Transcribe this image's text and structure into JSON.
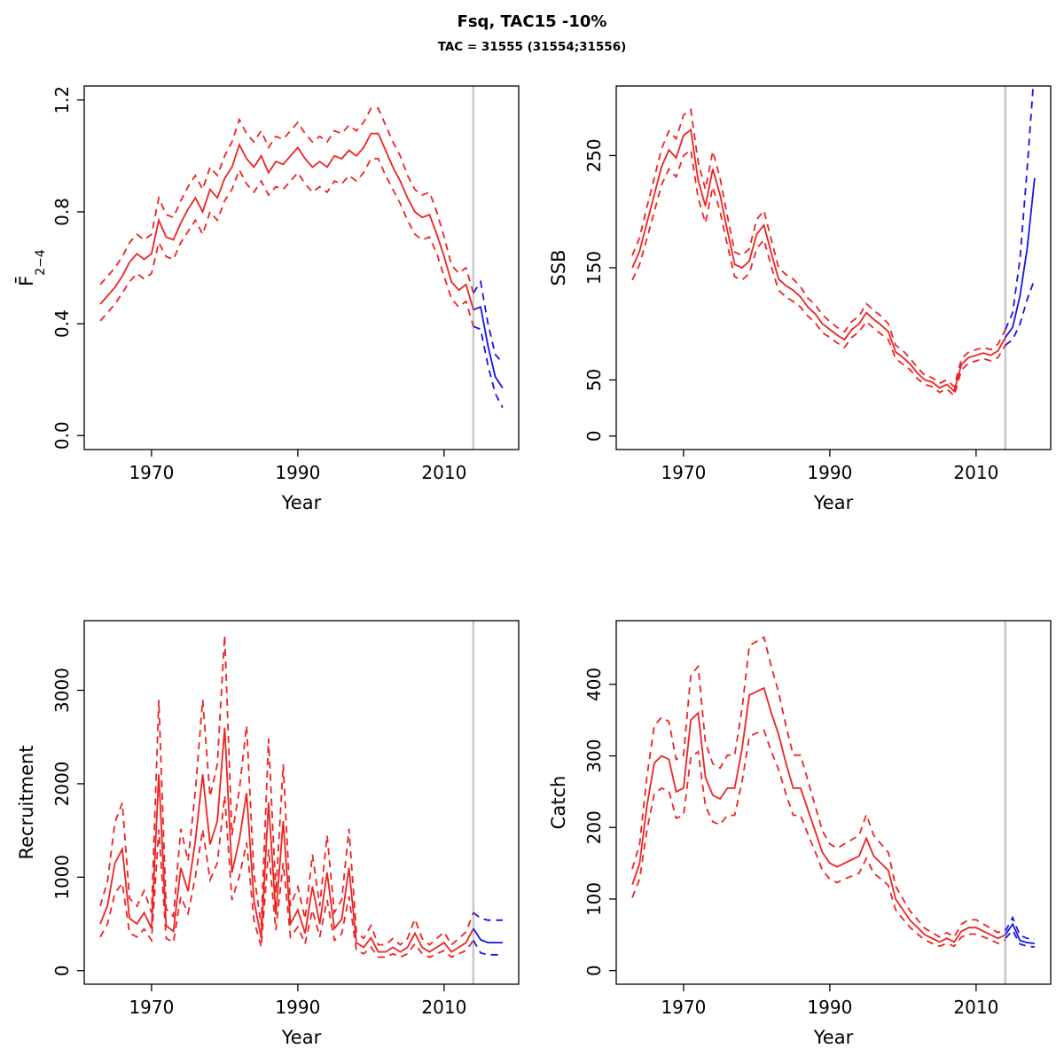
{
  "title": "Fsq, TAC15 -10%",
  "subtitle": "TAC = 31555 (31554;31556)",
  "colors": {
    "history": "#EE2222",
    "forecast": "#1414E6",
    "vline": "#C6C6C6",
    "axis": "#000000"
  },
  "chart_data": [
    {
      "id": "fbar",
      "type": "line",
      "title": "",
      "ylabel_main": "F̄",
      "ylabel_sub": "2−4",
      "xlabel": "Year",
      "xlim": [
        1960.8,
        2020.2
      ],
      "ylim": [
        -0.05,
        1.25
      ],
      "xticks": [
        1970,
        1990,
        2010
      ],
      "yticks": [
        0,
        0.4,
        0.8,
        1.2
      ],
      "ytick_labels": [
        "0.0",
        "0.4",
        "0.8",
        "1.2"
      ],
      "grid": false,
      "legend": "none",
      "vline_x": 2014,
      "series": [
        {
          "name": "history-median",
          "start_year": 1963,
          "color": "history",
          "dash": false,
          "values": [
            0.47,
            0.5,
            0.53,
            0.57,
            0.62,
            0.65,
            0.63,
            0.65,
            0.77,
            0.71,
            0.7,
            0.76,
            0.81,
            0.85,
            0.8,
            0.88,
            0.85,
            0.92,
            0.96,
            1.04,
            0.99,
            0.96,
            1.0,
            0.94,
            0.98,
            0.97,
            1.0,
            1.03,
            0.99,
            0.96,
            0.98,
            0.96,
            1.0,
            0.99,
            1.02,
            1.0,
            1.03,
            1.08,
            1.08,
            1.02,
            0.96,
            0.91,
            0.85,
            0.8,
            0.78,
            0.79,
            0.72,
            0.64,
            0.55,
            0.52,
            0.54,
            0.45
          ]
        },
        {
          "name": "history-lower",
          "start_year": 1963,
          "color": "history",
          "dash": true,
          "values": [
            0.41,
            0.44,
            0.47,
            0.51,
            0.55,
            0.58,
            0.56,
            0.58,
            0.69,
            0.64,
            0.63,
            0.69,
            0.73,
            0.77,
            0.72,
            0.8,
            0.77,
            0.84,
            0.88,
            0.95,
            0.9,
            0.87,
            0.91,
            0.86,
            0.89,
            0.88,
            0.91,
            0.94,
            0.9,
            0.87,
            0.89,
            0.87,
            0.91,
            0.9,
            0.93,
            0.91,
            0.94,
            0.99,
            0.99,
            0.93,
            0.88,
            0.83,
            0.77,
            0.72,
            0.7,
            0.71,
            0.65,
            0.57,
            0.49,
            0.46,
            0.48,
            0.39
          ]
        },
        {
          "name": "history-upper",
          "start_year": 1963,
          "color": "history",
          "dash": true,
          "values": [
            0.54,
            0.57,
            0.6,
            0.64,
            0.69,
            0.72,
            0.7,
            0.72,
            0.85,
            0.79,
            0.78,
            0.84,
            0.89,
            0.93,
            0.88,
            0.96,
            0.93,
            1.0,
            1.05,
            1.13,
            1.08,
            1.05,
            1.09,
            1.03,
            1.07,
            1.06,
            1.09,
            1.12,
            1.08,
            1.05,
            1.07,
            1.05,
            1.09,
            1.08,
            1.11,
            1.09,
            1.12,
            1.17,
            1.17,
            1.11,
            1.05,
            1.0,
            0.93,
            0.88,
            0.86,
            0.87,
            0.8,
            0.71,
            0.61,
            0.58,
            0.6,
            0.51
          ]
        },
        {
          "name": "forecast-median",
          "start_year": 2014,
          "color": "forecast",
          "dash": false,
          "values": [
            0.45,
            0.46,
            0.32,
            0.21,
            0.17
          ]
        },
        {
          "name": "forecast-lower",
          "start_year": 2014,
          "color": "forecast",
          "dash": true,
          "values": [
            0.39,
            0.38,
            0.25,
            0.15,
            0.1
          ]
        },
        {
          "name": "forecast-upper",
          "start_year": 2014,
          "color": "forecast",
          "dash": true,
          "values": [
            0.51,
            0.55,
            0.4,
            0.29,
            0.26
          ]
        }
      ]
    },
    {
      "id": "ssb",
      "type": "line",
      "title": "",
      "ylabel_main": "SSB",
      "ylabel_sub": "",
      "xlabel": "Year",
      "xlim": [
        1960.8,
        2020.2
      ],
      "ylim": [
        -12,
        312
      ],
      "xticks": [
        1970,
        1990,
        2010
      ],
      "yticks": [
        0,
        50,
        150,
        250
      ],
      "grid": false,
      "legend": "none",
      "vline_x": 2014,
      "series": [
        {
          "name": "history-median",
          "start_year": 1963,
          "color": "history",
          "dash": false,
          "values": [
            150,
            165,
            190,
            215,
            240,
            255,
            248,
            268,
            273,
            228,
            205,
            238,
            215,
            183,
            153,
            150,
            156,
            180,
            188,
            163,
            140,
            134,
            130,
            124,
            115,
            109,
            100,
            95,
            90,
            86,
            95,
            100,
            110,
            104,
            99,
            93,
            75,
            70,
            64,
            56,
            50,
            48,
            43,
            46,
            40,
            64,
            70,
            72,
            74,
            72,
            76,
            88
          ]
        },
        {
          "name": "history-lower",
          "start_year": 1963,
          "color": "history",
          "dash": true,
          "values": [
            139,
            153,
            176,
            200,
            224,
            238,
            231,
            250,
            255,
            212,
            190,
            222,
            200,
            170,
            142,
            139,
            145,
            167,
            175,
            151,
            130,
            124,
            120,
            115,
            107,
            101,
            92,
            88,
            83,
            79,
            88,
            93,
            102,
            96,
            91,
            86,
            69,
            64,
            59,
            51,
            46,
            44,
            39,
            42,
            36,
            59,
            65,
            67,
            69,
            67,
            70,
            81
          ]
        },
        {
          "name": "history-upper",
          "start_year": 1963,
          "color": "history",
          "dash": true,
          "values": [
            161,
            177,
            204,
            230,
            256,
            272,
            265,
            286,
            291,
            244,
            220,
            254,
            230,
            196,
            164,
            161,
            167,
            193,
            201,
            175,
            150,
            144,
            140,
            133,
            123,
            117,
            108,
            102,
            97,
            93,
            102,
            107,
            118,
            112,
            107,
            100,
            81,
            76,
            69,
            61,
            54,
            52,
            47,
            50,
            44,
            69,
            75,
            77,
            79,
            77,
            82,
            95
          ]
        },
        {
          "name": "forecast-median",
          "start_year": 2014,
          "color": "forecast",
          "dash": false,
          "values": [
            88,
            97,
            125,
            168,
            230
          ]
        },
        {
          "name": "forecast-lower",
          "start_year": 2014,
          "color": "forecast",
          "dash": true,
          "values": [
            81,
            86,
            100,
            122,
            140
          ]
        },
        {
          "name": "forecast-upper",
          "start_year": 2014,
          "color": "forecast",
          "dash": true,
          "values": [
            95,
            110,
            158,
            240,
            330
          ]
        }
      ]
    },
    {
      "id": "recruitment",
      "type": "line",
      "title": "",
      "ylabel_main": "Recruitment",
      "ylabel_sub": "",
      "xlabel": "Year",
      "xlim": [
        1960.8,
        2020.2
      ],
      "ylim": [
        -145,
        3745
      ],
      "xticks": [
        1970,
        1990,
        2010
      ],
      "yticks": [
        0,
        1000,
        2000,
        3000
      ],
      "grid": false,
      "legend": "none",
      "vline_x": 2014,
      "series": [
        {
          "name": "history-median",
          "start_year": 1963,
          "color": "history",
          "dash": false,
          "values": [
            500,
            700,
            1150,
            1300,
            560,
            500,
            620,
            450,
            2100,
            480,
            420,
            1100,
            850,
            1400,
            2100,
            1350,
            1600,
            2600,
            1050,
            1400,
            1900,
            750,
            350,
            1800,
            600,
            1600,
            500,
            650,
            400,
            900,
            500,
            1050,
            450,
            550,
            1100,
            300,
            250,
            350,
            200,
            200,
            250,
            200,
            250,
            400,
            250,
            200,
            250,
            300,
            200,
            250,
            300,
            450
          ]
        },
        {
          "name": "history-lower",
          "start_year": 1963,
          "color": "history",
          "dash": true,
          "values": [
            360,
            504,
            828,
            936,
            403,
            360,
            446,
            324,
            1510,
            346,
            302,
            792,
            612,
            1008,
            1510,
            972,
            1152,
            1872,
            756,
            1008,
            1368,
            540,
            252,
            1296,
            432,
            1152,
            360,
            468,
            288,
            648,
            360,
            756,
            324,
            396,
            792,
            216,
            180,
            252,
            144,
            144,
            180,
            144,
            180,
            288,
            180,
            144,
            180,
            216,
            144,
            180,
            216,
            324
          ]
        },
        {
          "name": "history-upper",
          "start_year": 1963,
          "color": "history",
          "dash": true,
          "values": [
            690,
            966,
            1587,
            1794,
            773,
            690,
            856,
            621,
            2898,
            662,
            580,
            1518,
            1173,
            1932,
            2898,
            1863,
            2208,
            3588,
            1449,
            1932,
            2622,
            1035,
            483,
            2484,
            828,
            2208,
            690,
            897,
            552,
            1242,
            690,
            1449,
            621,
            759,
            1518,
            414,
            345,
            483,
            276,
            276,
            345,
            276,
            345,
            552,
            345,
            276,
            345,
            414,
            276,
            345,
            414,
            621
          ]
        },
        {
          "name": "forecast-median",
          "start_year": 2014,
          "color": "forecast",
          "dash": false,
          "values": [
            450,
            330,
            300,
            300,
            300
          ]
        },
        {
          "name": "forecast-lower",
          "start_year": 2014,
          "color": "forecast",
          "dash": true,
          "values": [
            324,
            190,
            170,
            170,
            170
          ]
        },
        {
          "name": "forecast-upper",
          "start_year": 2014,
          "color": "forecast",
          "dash": true,
          "values": [
            621,
            560,
            540,
            540,
            540
          ]
        }
      ]
    },
    {
      "id": "catch",
      "type": "line",
      "title": "",
      "ylabel_main": "Catch",
      "ylabel_sub": "",
      "xlabel": "Year",
      "xlim": [
        1960.8,
        2020.2
      ],
      "ylim": [
        -19,
        489
      ],
      "xticks": [
        1970,
        1990,
        2010
      ],
      "yticks": [
        0,
        100,
        200,
        300,
        400
      ],
      "grid": false,
      "legend": "none",
      "vline_x": 2014,
      "series": [
        {
          "name": "history-median",
          "start_year": 1963,
          "color": "history",
          "dash": false,
          "values": [
            120,
            150,
            230,
            290,
            300,
            295,
            250,
            255,
            350,
            360,
            270,
            245,
            240,
            255,
            255,
            310,
            385,
            390,
            395,
            360,
            330,
            290,
            255,
            255,
            225,
            195,
            165,
            150,
            145,
            150,
            155,
            160,
            185,
            160,
            150,
            140,
            100,
            85,
            70,
            60,
            50,
            45,
            40,
            45,
            40,
            55,
            60,
            60,
            55,
            50,
            45,
            50
          ]
        },
        {
          "name": "history-lower",
          "start_year": 1963,
          "color": "history",
          "dash": true,
          "values": [
            102,
            128,
            196,
            247,
            255,
            251,
            213,
            217,
            298,
            306,
            230,
            208,
            204,
            217,
            217,
            264,
            327,
            332,
            336,
            306,
            281,
            247,
            217,
            217,
            191,
            166,
            140,
            128,
            123,
            128,
            132,
            136,
            157,
            136,
            128,
            119,
            85,
            72,
            60,
            51,
            43,
            38,
            34,
            38,
            34,
            47,
            51,
            51,
            47,
            43,
            38,
            43
          ]
        },
        {
          "name": "history-upper",
          "start_year": 1963,
          "color": "history",
          "dash": true,
          "values": [
            142,
            177,
            271,
            342,
            354,
            348,
            295,
            301,
            413,
            425,
            319,
            289,
            283,
            301,
            301,
            366,
            454,
            460,
            466,
            425,
            389,
            342,
            301,
            301,
            266,
            230,
            195,
            177,
            171,
            177,
            183,
            189,
            218,
            189,
            177,
            165,
            118,
            100,
            83,
            71,
            59,
            53,
            47,
            53,
            47,
            65,
            71,
            71,
            65,
            59,
            53,
            59
          ]
        },
        {
          "name": "forecast-median",
          "start_year": 2014,
          "color": "forecast",
          "dash": false,
          "values": [
            50,
            65,
            42,
            39,
            38
          ]
        },
        {
          "name": "forecast-lower",
          "start_year": 2014,
          "color": "forecast",
          "dash": true,
          "values": [
            45,
            56,
            37,
            34,
            33
          ]
        },
        {
          "name": "forecast-upper",
          "start_year": 2014,
          "color": "forecast",
          "dash": true,
          "values": [
            55,
            74,
            49,
            45,
            44
          ]
        }
      ]
    }
  ]
}
